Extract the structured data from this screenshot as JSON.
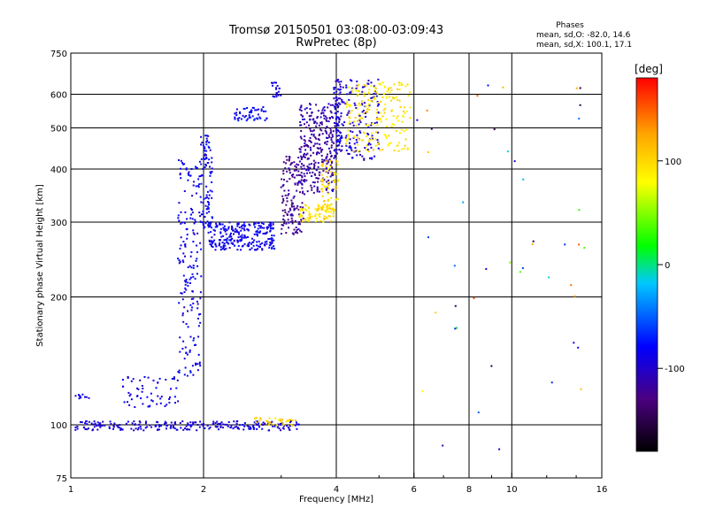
{
  "chart_data": [
    {
      "type": "scatter",
      "title": "Tromsø 20150501 03:08:00-03:09:43",
      "subtitle": "RwPretec (8p)",
      "phase_box": {
        "title": "Phases",
        "line1": "mean, sd,O: -82.0, 14.6",
        "line2": "mean, sd,X: 100.1, 17.1"
      },
      "xlabel": "Frequency [MHz]",
      "ylabel": "Stationary phase Virtual Height [km]",
      "xscale": "log",
      "yscale": "log",
      "xlim": [
        1,
        16
      ],
      "ylim": [
        75,
        750
      ],
      "xticks": [
        1,
        2,
        4,
        6,
        8,
        10,
        16
      ],
      "xtick_labels": [
        "1",
        "2",
        "4",
        "6",
        "8",
        "10",
        "16"
      ],
      "x_gridlines": [
        2,
        4,
        6,
        8,
        10
      ],
      "yticks": [
        75,
        100,
        200,
        300,
        400,
        500,
        600,
        750
      ],
      "ytick_labels": [
        "75",
        "100",
        "200",
        "300",
        "400",
        "500",
        "600",
        "750"
      ],
      "y_gridlines": [
        100,
        200,
        300,
        400,
        500,
        600
      ],
      "grid": true,
      "colorbar": {
        "label": "[deg]",
        "range": [
          -180,
          180
        ],
        "ticks": [
          -100,
          0,
          100
        ],
        "tick_labels": [
          "-100",
          "0",
          "100"
        ],
        "colors": [
          "#000000",
          "#4b0080",
          "#0000ff",
          "#00c8ff",
          "#00ff00",
          "#ffff00",
          "#ffa500",
          "#ff0000"
        ]
      },
      "series": [
        {
          "x_range": [
            1.02,
            3.3
          ],
          "h_range": [
            97,
            102
          ],
          "phase": -95,
          "n": 240
        },
        {
          "x_range": [
            1.02,
            1.1
          ],
          "h_range": [
            115,
            118
          ],
          "phase": -90,
          "n": 10
        },
        {
          "x_range": [
            1.3,
            1.75
          ],
          "h_range": [
            110,
            130
          ],
          "phase": -90,
          "n": 60
        },
        {
          "x_range": [
            1.75,
            1.98
          ],
          "h_range": [
            130,
            420
          ],
          "phase": -88,
          "n": 180
        },
        {
          "x_range": [
            1.97,
            2.1
          ],
          "h_range": [
            290,
            480
          ],
          "phase": -85,
          "n": 90
        },
        {
          "x_range": [
            2.05,
            2.9
          ],
          "h_range": [
            258,
            300
          ],
          "phase": -86,
          "n": 260
        },
        {
          "x_range": [
            2.35,
            2.8
          ],
          "h_range": [
            520,
            560
          ],
          "phase": -85,
          "n": 50
        },
        {
          "x_range": [
            2.85,
            3.0
          ],
          "h_range": [
            590,
            640
          ],
          "phase": -95,
          "n": 20
        },
        {
          "x_range": [
            3.0,
            3.4
          ],
          "h_range": [
            280,
            430
          ],
          "phase": -120,
          "n": 140
        },
        {
          "x_range": [
            3.3,
            3.95
          ],
          "h_range": [
            350,
            570
          ],
          "phase": -115,
          "n": 280
        },
        {
          "x_range": [
            3.3,
            3.95
          ],
          "h_range": [
            300,
            330
          ],
          "phase": 95,
          "n": 90
        },
        {
          "x_range": [
            3.7,
            4.05
          ],
          "h_range": [
            320,
            420
          ],
          "phase": 100,
          "n": 60
        },
        {
          "x_range": [
            3.95,
            4.1
          ],
          "h_range": [
            420,
            650
          ],
          "phase": -100,
          "n": 90
        },
        {
          "x_range": [
            4.1,
            5.0
          ],
          "h_range": [
            420,
            650
          ],
          "phase": -95,
          "n": 140
        },
        {
          "x_range": [
            4.2,
            5.9
          ],
          "h_range": [
            440,
            640
          ],
          "phase": 95,
          "n": 200
        },
        {
          "x_range": [
            2.6,
            3.25
          ],
          "h_range": [
            99,
            104
          ],
          "phase": 100,
          "n": 35
        },
        {
          "x_range": [
            6.0,
            15.5
          ],
          "h_range": [
            85,
            650
          ],
          "phase": 0,
          "n": 45,
          "scatter": true
        }
      ]
    }
  ]
}
